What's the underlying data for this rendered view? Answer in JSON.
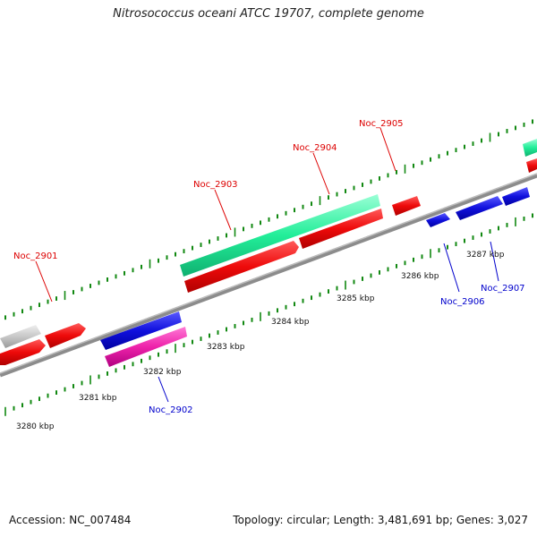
{
  "title": "Nitrosococcus oceani ATCC 19707, complete genome",
  "accession": "Accession: NC_007484",
  "topology": "Topology: circular; Length: 3,481,691 bp; Genes: 3,027",
  "scale_labels": [
    "3280 kbp",
    "3281 kbp",
    "3282 kbp",
    "3283 kbp",
    "3284 kbp",
    "3285 kbp",
    "3286 kbp",
    "3287 kbp"
  ],
  "gene_labels": [
    {
      "name": "Noc_2901",
      "color": "#dd0000"
    },
    {
      "name": "Noc_2902",
      "color": "#0000cc"
    },
    {
      "name": "Noc_2903",
      "color": "#dd0000"
    },
    {
      "name": "Noc_2904",
      "color": "#dd0000"
    },
    {
      "name": "Noc_2905",
      "color": "#dd0000"
    },
    {
      "name": "Noc_2906",
      "color": "#0000cc"
    },
    {
      "name": "Noc_2907",
      "color": "#0000cc"
    }
  ],
  "colors": {
    "backbone": "#8c8c8c",
    "tick": "#118811",
    "red": "#ee0a0a",
    "blue": "#1010dd",
    "green": "#22ee99",
    "pink": "#ee22aa",
    "gray": "#c8c8c8"
  }
}
